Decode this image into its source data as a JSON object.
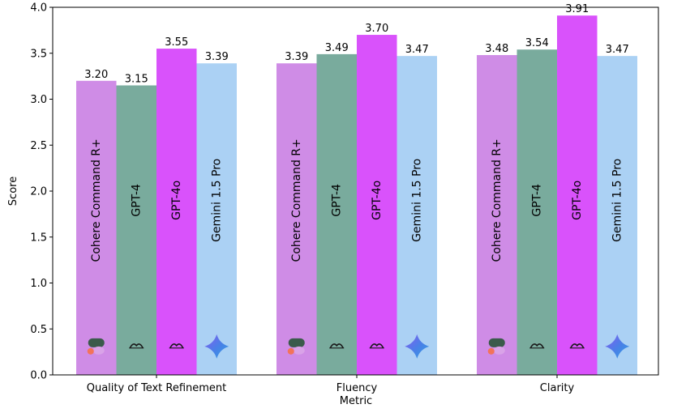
{
  "chart_data": {
    "type": "bar",
    "title": "",
    "xlabel": "Metric",
    "ylabel": "Score",
    "ylim": [
      0,
      4.0
    ],
    "yticks": [
      "0.0",
      "0.5",
      "1.0",
      "1.5",
      "2.0",
      "2.5",
      "3.0",
      "3.5",
      "4.0"
    ],
    "grid": false,
    "legend": "none",
    "categories": [
      "Quality of Text Refinement",
      "Fluency",
      "Clarity"
    ],
    "series": [
      {
        "name": "Cohere Command R+",
        "color": "#cf8ce6",
        "icon": "cohere-logo-icon",
        "values": [
          3.2,
          3.39,
          3.48
        ]
      },
      {
        "name": "GPT-4",
        "color": "#79ab9d",
        "icon": "openai-logo-icon",
        "values": [
          3.15,
          3.49,
          3.54
        ]
      },
      {
        "name": "GPT-4o",
        "color": "#d952fb",
        "icon": "openai-logo-icon",
        "values": [
          3.55,
          3.7,
          3.91
        ]
      },
      {
        "name": "Gemini 1.5 Pro",
        "color": "#abd1f4",
        "icon": "gemini-sparkle-icon",
        "values": [
          3.39,
          3.47,
          3.47
        ]
      }
    ]
  }
}
